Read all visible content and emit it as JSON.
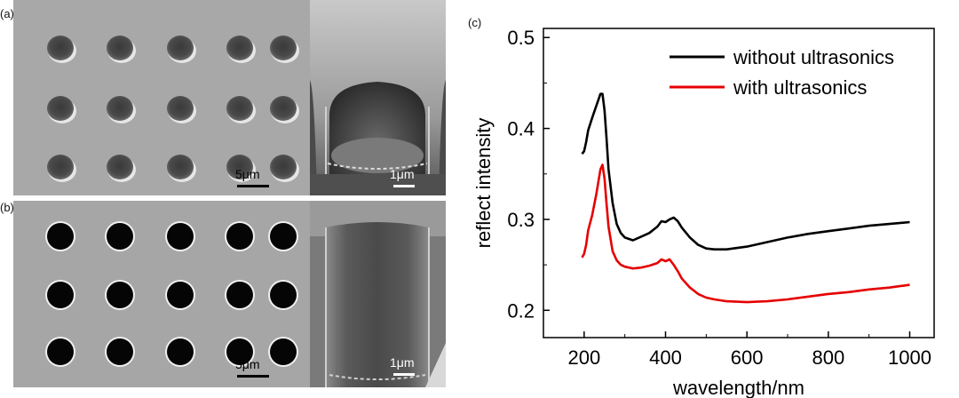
{
  "panels": {
    "a": {
      "label": "(a)",
      "scale_plan": "5μm",
      "scale_cross": "1μm"
    },
    "b": {
      "label": "(b)",
      "scale_plan": "5μm",
      "scale_cross": "1μm"
    },
    "c": {
      "label": "(c)"
    }
  },
  "chart_data": {
    "type": "line",
    "xlabel": "wavelength/nm",
    "ylabel": "reflect intensity",
    "xlim": [
      100,
      1060
    ],
    "ylim": [
      0.17,
      0.51
    ],
    "xticks": [
      200,
      400,
      600,
      800,
      1000
    ],
    "yticks": [
      0.2,
      0.3,
      0.4,
      0.5
    ],
    "ytick_labels": [
      "0.2",
      "0.3",
      "0.4",
      "0.5"
    ],
    "legend": "top-right",
    "series": [
      {
        "name": "without ultrasonics",
        "color": "#000000",
        "x": [
          195,
          200,
          205,
          210,
          220,
          230,
          240,
          245,
          250,
          255,
          260,
          270,
          280,
          290,
          300,
          320,
          340,
          360,
          380,
          390,
          400,
          410,
          420,
          430,
          440,
          460,
          480,
          500,
          520,
          550,
          600,
          650,
          700,
          750,
          800,
          850,
          900,
          950,
          1000
        ],
        "y": [
          0.372,
          0.375,
          0.385,
          0.398,
          0.412,
          0.425,
          0.438,
          0.438,
          0.42,
          0.39,
          0.355,
          0.318,
          0.295,
          0.285,
          0.28,
          0.277,
          0.281,
          0.285,
          0.292,
          0.298,
          0.297,
          0.3,
          0.302,
          0.298,
          0.291,
          0.28,
          0.272,
          0.268,
          0.267,
          0.267,
          0.27,
          0.275,
          0.28,
          0.284,
          0.287,
          0.29,
          0.293,
          0.295,
          0.297
        ]
      },
      {
        "name": "with ultrasonics",
        "color": "#e60000",
        "x": [
          195,
          200,
          205,
          210,
          220,
          230,
          240,
          245,
          250,
          255,
          260,
          270,
          280,
          290,
          300,
          320,
          340,
          360,
          380,
          390,
          400,
          410,
          420,
          430,
          440,
          460,
          480,
          500,
          520,
          550,
          600,
          650,
          700,
          750,
          800,
          850,
          900,
          950,
          1000
        ],
        "y": [
          0.258,
          0.262,
          0.272,
          0.288,
          0.305,
          0.328,
          0.355,
          0.36,
          0.345,
          0.318,
          0.292,
          0.265,
          0.255,
          0.25,
          0.248,
          0.246,
          0.247,
          0.249,
          0.252,
          0.256,
          0.254,
          0.256,
          0.25,
          0.243,
          0.235,
          0.225,
          0.218,
          0.214,
          0.212,
          0.21,
          0.209,
          0.21,
          0.212,
          0.215,
          0.218,
          0.22,
          0.223,
          0.225,
          0.228
        ]
      }
    ]
  }
}
